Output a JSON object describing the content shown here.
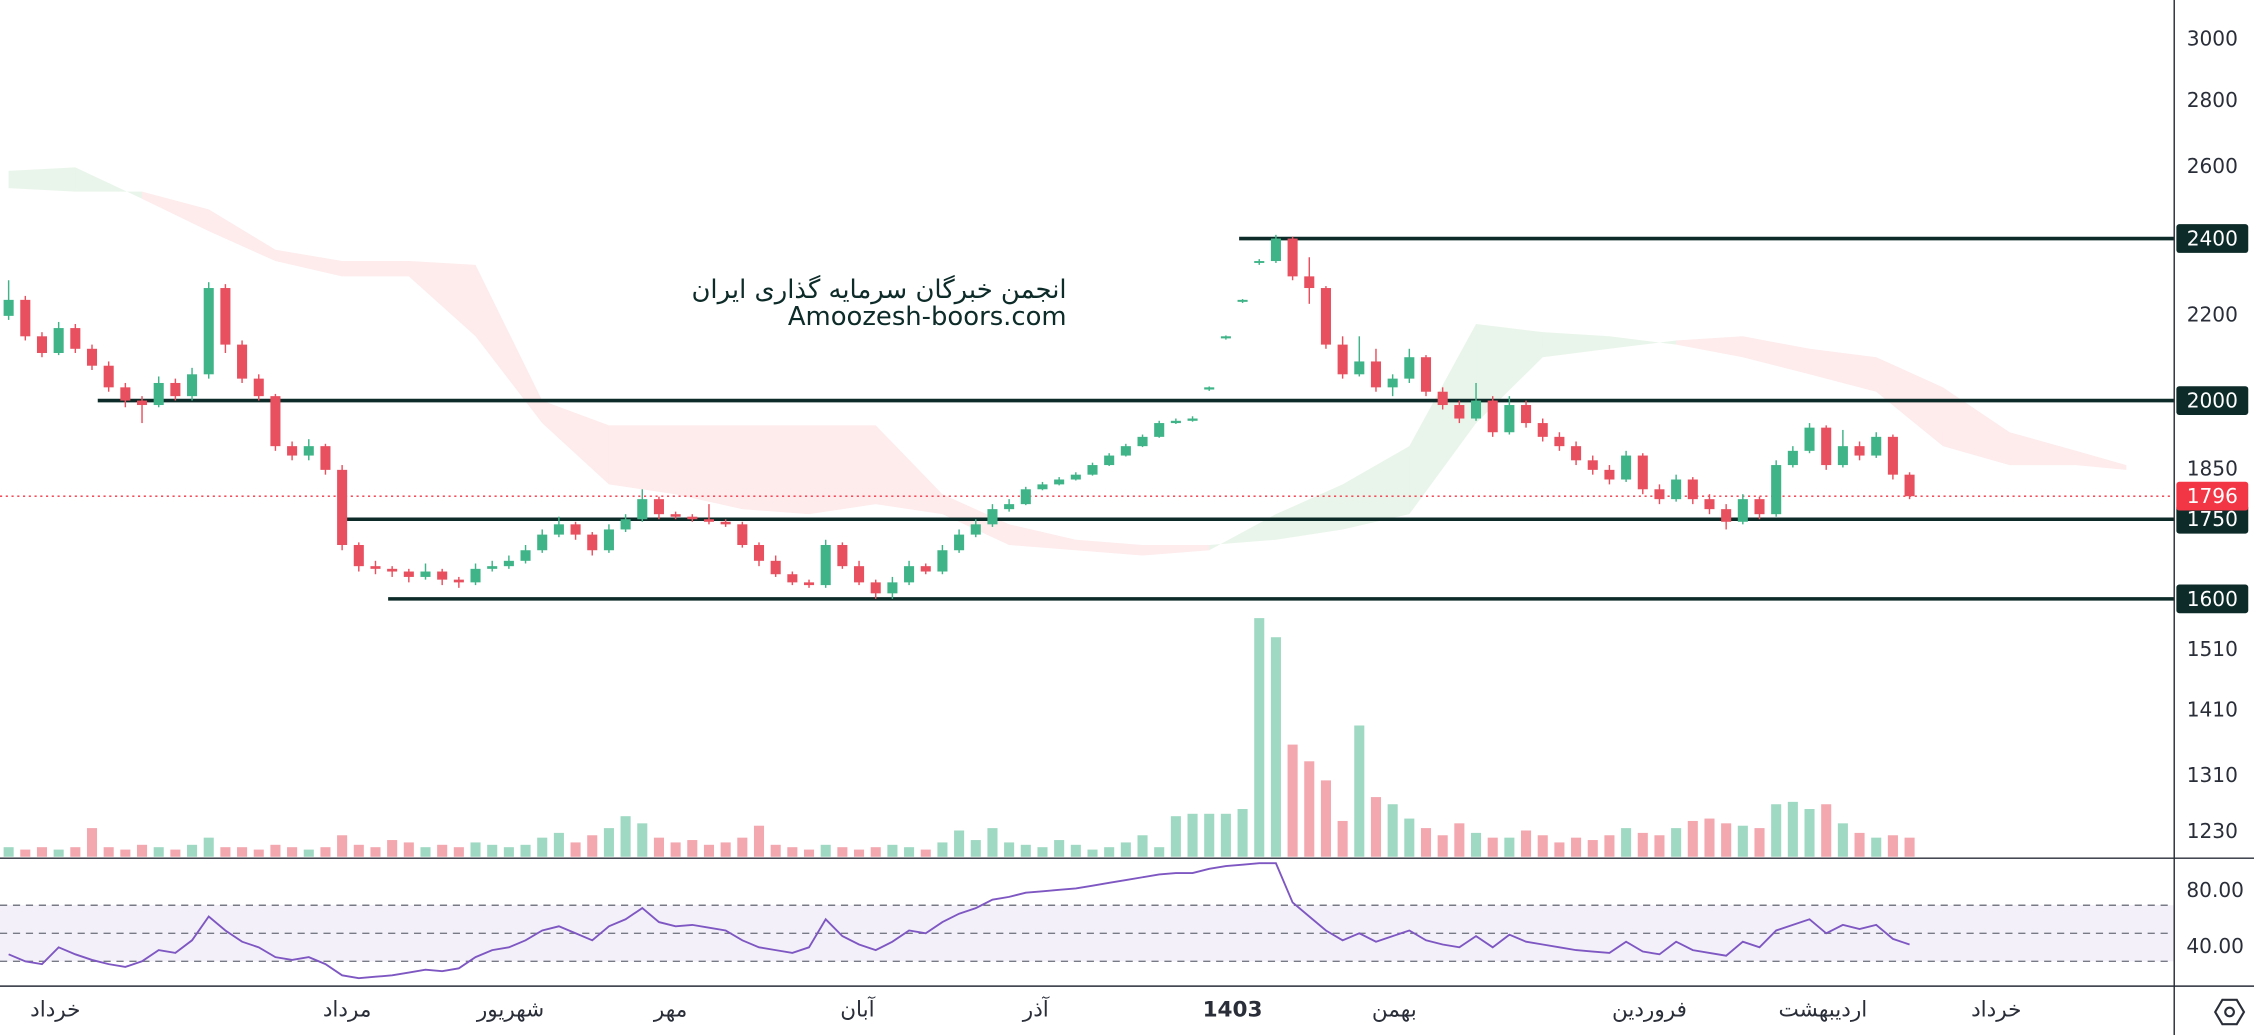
{
  "chart_data": {
    "type": "candlestick",
    "log_scale": true,
    "ylim": [
      1197,
      3139
    ],
    "yticks": [
      3000,
      2800,
      2600,
      2200,
      1850,
      1510,
      1410,
      1310,
      1230
    ],
    "levels": [
      2400,
      2000,
      1750,
      1600
    ],
    "level_color": "#0d2b28",
    "last_price_color": "#f23645",
    "watermark": [
      "انجمن خبرگان سرمایه گذاری ایران",
      "Amoozesh-boors.com"
    ],
    "xticks": [
      {
        "value": 2.8,
        "label": "خرداد"
      },
      {
        "value": 20.3,
        "label": "مرداد"
      },
      {
        "value": 30.1,
        "label": "شهریور"
      },
      {
        "value": 39.7,
        "label": "مهر"
      },
      {
        "value": 50.9,
        "label": "آبان"
      },
      {
        "value": 61.6,
        "label": "آذر"
      },
      {
        "value": 73.4,
        "label": "1403"
      },
      {
        "value": 83.1,
        "label": "بهمن"
      },
      {
        "value": 98.4,
        "label": "فروردین"
      },
      {
        "value": 108.8,
        "label": "اردیبهشت"
      },
      {
        "value": 119.2,
        "label": "خرداد"
      }
    ],
    "up_color": "#3fb488",
    "down_color": "#e8505f",
    "candles": {
      "open": [
        2200,
        2240,
        2150,
        2110,
        2170,
        2120,
        2080,
        2030,
        2000,
        1990,
        2040,
        2010,
        2060,
        2270,
        2130,
        2050,
        2010,
        1900,
        1880,
        1900,
        1850,
        1700,
        1660,
        1655,
        1650,
        1640,
        1650,
        1635,
        1630,
        1655,
        1660,
        1670,
        1690,
        1720,
        1740,
        1720,
        1690,
        1730,
        1750,
        1790,
        1760,
        1755,
        1750,
        1745,
        1740,
        1700,
        1670,
        1645,
        1630,
        1625,
        1700,
        1660,
        1630,
        1610,
        1630,
        1660,
        1650,
        1690,
        1720,
        1740,
        1770,
        1780,
        1810,
        1820,
        1830,
        1840,
        1860,
        1880,
        1900,
        1920,
        1950,
        1955,
        2025,
        2145,
        2235,
        2335,
        2340,
        2400,
        2300,
        2270,
        2130,
        2060,
        2090,
        2030,
        2050,
        2100,
        2020,
        1990,
        1960,
        2000,
        1930,
        1990,
        1950,
        1920,
        1900,
        1870,
        1850,
        1830,
        1880,
        1810,
        1790,
        1830,
        1790,
        1770,
        1745,
        1790,
        1760,
        1860,
        1890,
        1940,
        1860,
        1900,
        1880,
        1920,
        1840
      ],
      "high": [
        2290,
        2250,
        2160,
        2185,
        2180,
        2130,
        2090,
        2040,
        2010,
        2055,
        2050,
        2075,
        2285,
        2280,
        2140,
        2060,
        2015,
        1910,
        1915,
        1905,
        1860,
        1705,
        1670,
        1660,
        1655,
        1665,
        1655,
        1640,
        1665,
        1670,
        1680,
        1700,
        1730,
        1755,
        1745,
        1725,
        1740,
        1760,
        1810,
        1795,
        1765,
        1760,
        1780,
        1750,
        1745,
        1705,
        1680,
        1650,
        1635,
        1710,
        1705,
        1670,
        1635,
        1640,
        1670,
        1665,
        1700,
        1730,
        1750,
        1780,
        1790,
        1815,
        1825,
        1835,
        1845,
        1865,
        1885,
        1905,
        1925,
        1955,
        1960,
        1965,
        2032,
        2152,
        2242,
        2345,
        2410,
        2405,
        2350,
        2275,
        2150,
        2150,
        2120,
        2060,
        2120,
        2105,
        2030,
        2000,
        2040,
        2010,
        2010,
        2000,
        1960,
        1930,
        1910,
        1880,
        1860,
        1890,
        1885,
        1820,
        1840,
        1835,
        1800,
        1780,
        1800,
        1795,
        1870,
        1900,
        1950,
        1945,
        1935,
        1910,
        1930,
        1925,
        1845
      ],
      "low": [
        2190,
        2140,
        2100,
        2105,
        2110,
        2070,
        2020,
        1985,
        1950,
        1985,
        2000,
        2000,
        2050,
        2110,
        2040,
        2000,
        1890,
        1870,
        1870,
        1840,
        1690,
        1650,
        1645,
        1640,
        1630,
        1635,
        1625,
        1620,
        1625,
        1650,
        1655,
        1665,
        1685,
        1715,
        1710,
        1680,
        1685,
        1725,
        1745,
        1750,
        1750,
        1745,
        1740,
        1735,
        1695,
        1660,
        1640,
        1625,
        1620,
        1620,
        1655,
        1625,
        1600,
        1600,
        1625,
        1645,
        1645,
        1685,
        1715,
        1735,
        1765,
        1778,
        1808,
        1818,
        1828,
        1838,
        1858,
        1878,
        1898,
        1918,
        1948,
        1953,
        2022,
        2142,
        2232,
        2330,
        2335,
        2290,
        2230,
        2120,
        2050,
        2055,
        2020,
        2010,
        2040,
        2010,
        1980,
        1950,
        1955,
        1920,
        1925,
        1940,
        1910,
        1890,
        1860,
        1840,
        1820,
        1825,
        1800,
        1780,
        1785,
        1780,
        1760,
        1730,
        1740,
        1750,
        1755,
        1855,
        1885,
        1850,
        1855,
        1870,
        1875,
        1830,
        1790
      ],
      "close": [
        2240,
        2150,
        2110,
        2170,
        2120,
        2080,
        2030,
        2000,
        1990,
        2040,
        2010,
        2060,
        2270,
        2130,
        2050,
        2010,
        1900,
        1880,
        1900,
        1850,
        1700,
        1660,
        1655,
        1650,
        1640,
        1650,
        1635,
        1630,
        1655,
        1660,
        1670,
        1690,
        1720,
        1740,
        1720,
        1690,
        1730,
        1750,
        1790,
        1760,
        1755,
        1750,
        1745,
        1740,
        1700,
        1670,
        1645,
        1630,
        1625,
        1700,
        1660,
        1630,
        1610,
        1630,
        1660,
        1650,
        1690,
        1720,
        1740,
        1770,
        1780,
        1810,
        1820,
        1830,
        1840,
        1860,
        1880,
        1900,
        1920,
        1950,
        1955,
        1960,
        2030,
        2150,
        2240,
        2340,
        2400,
        2300,
        2270,
        2130,
        2060,
        2090,
        2030,
        2050,
        2100,
        2020,
        1990,
        1960,
        2000,
        1930,
        1990,
        1950,
        1920,
        1900,
        1870,
        1850,
        1830,
        1880,
        1810,
        1790,
        1830,
        1790,
        1770,
        1745,
        1790,
        1760,
        1860,
        1890,
        1940,
        1860,
        1900,
        1880,
        1920,
        1840,
        1796
      ]
    },
    "volume": [
      4,
      3,
      4,
      3,
      4,
      12,
      4,
      3,
      5,
      4,
      3,
      5,
      8,
      4,
      4,
      3,
      5,
      4,
      3,
      4,
      9,
      5,
      4,
      7,
      6,
      4,
      5,
      4,
      6,
      5,
      4,
      5,
      8,
      10,
      6,
      9,
      12,
      17,
      14,
      8,
      6,
      7,
      5,
      6,
      8,
      13,
      5,
      4,
      3,
      5,
      4,
      3,
      4,
      5,
      4,
      3,
      6,
      11,
      7,
      12,
      6,
      5,
      4,
      7,
      5,
      3,
      4,
      6,
      9,
      4,
      17,
      18,
      18,
      18,
      20,
      100,
      92,
      47,
      40,
      32,
      15,
      55,
      25,
      22,
      16,
      12,
      9,
      14,
      10,
      8,
      8,
      11,
      9,
      6,
      8,
      7,
      9,
      12,
      10,
      9,
      12,
      15,
      16,
      14,
      13,
      12,
      22,
      23,
      20,
      22,
      14,
      10,
      8,
      9,
      8
    ],
    "ichimoku": {
      "x": [
        0,
        4,
        8,
        12,
        16,
        20,
        24,
        28,
        32,
        36,
        40,
        44,
        48,
        52,
        56,
        60,
        64,
        68,
        72,
        76,
        80,
        84,
        88,
        92,
        96,
        100,
        104,
        108,
        112,
        116,
        120,
        124,
        127
      ],
      "span_a": [
        2590,
        2600,
        2510,
        2420,
        2340,
        2300,
        2300,
        2150,
        1950,
        1820,
        1800,
        1770,
        1760,
        1780,
        1760,
        1700,
        1690,
        1680,
        1690,
        1760,
        1820,
        1900,
        2180,
        2160,
        2150,
        2130,
        2100,
        2060,
        2020,
        1900,
        1860,
        1860,
        1850
      ],
      "span_b": [
        2540,
        2530,
        2530,
        2480,
        2370,
        2340,
        2340,
        2330,
        2000,
        1945,
        1945,
        1945,
        1945,
        1945,
        1800,
        1740,
        1710,
        1700,
        1700,
        1710,
        1730,
        1760,
        1950,
        2100,
        2120,
        2140,
        2150,
        2120,
        2100,
        2030,
        1930,
        1890,
        1860
      ],
      "up_color": "#4caf50",
      "down_color": "#f23645"
    },
    "rsi": {
      "values": [
        35,
        30,
        28,
        40,
        35,
        31,
        28,
        26,
        30,
        38,
        36,
        45,
        62,
        52,
        44,
        40,
        33,
        31,
        33,
        28,
        20,
        18,
        19,
        20,
        22,
        24,
        23,
        25,
        33,
        38,
        40,
        45,
        52,
        55,
        50,
        45,
        55,
        60,
        68,
        58,
        55,
        56,
        54,
        52,
        45,
        40,
        38,
        36,
        40,
        60,
        48,
        42,
        38,
        44,
        52,
        50,
        58,
        64,
        68,
        74,
        76,
        79,
        80,
        81,
        82,
        84,
        86,
        88,
        90,
        92,
        93,
        93,
        96,
        98,
        99,
        100,
        100,
        72,
        62,
        52,
        45,
        50,
        44,
        48,
        52,
        45,
        42,
        40,
        48,
        40,
        49,
        44,
        42,
        40,
        38,
        37,
        36,
        44,
        37,
        35,
        44,
        38,
        36,
        34,
        44,
        40,
        52,
        56,
        60,
        50,
        56,
        53,
        56,
        46,
        42
      ],
      "color": "#7e57c2",
      "ylim": [
        12.3,
        103.6
      ],
      "yticks": [
        {
          "value": 80,
          "label": "80.00"
        },
        {
          "value": 40,
          "label": "40.00"
        }
      ],
      "levels": [
        70,
        50,
        30
      ]
    }
  }
}
